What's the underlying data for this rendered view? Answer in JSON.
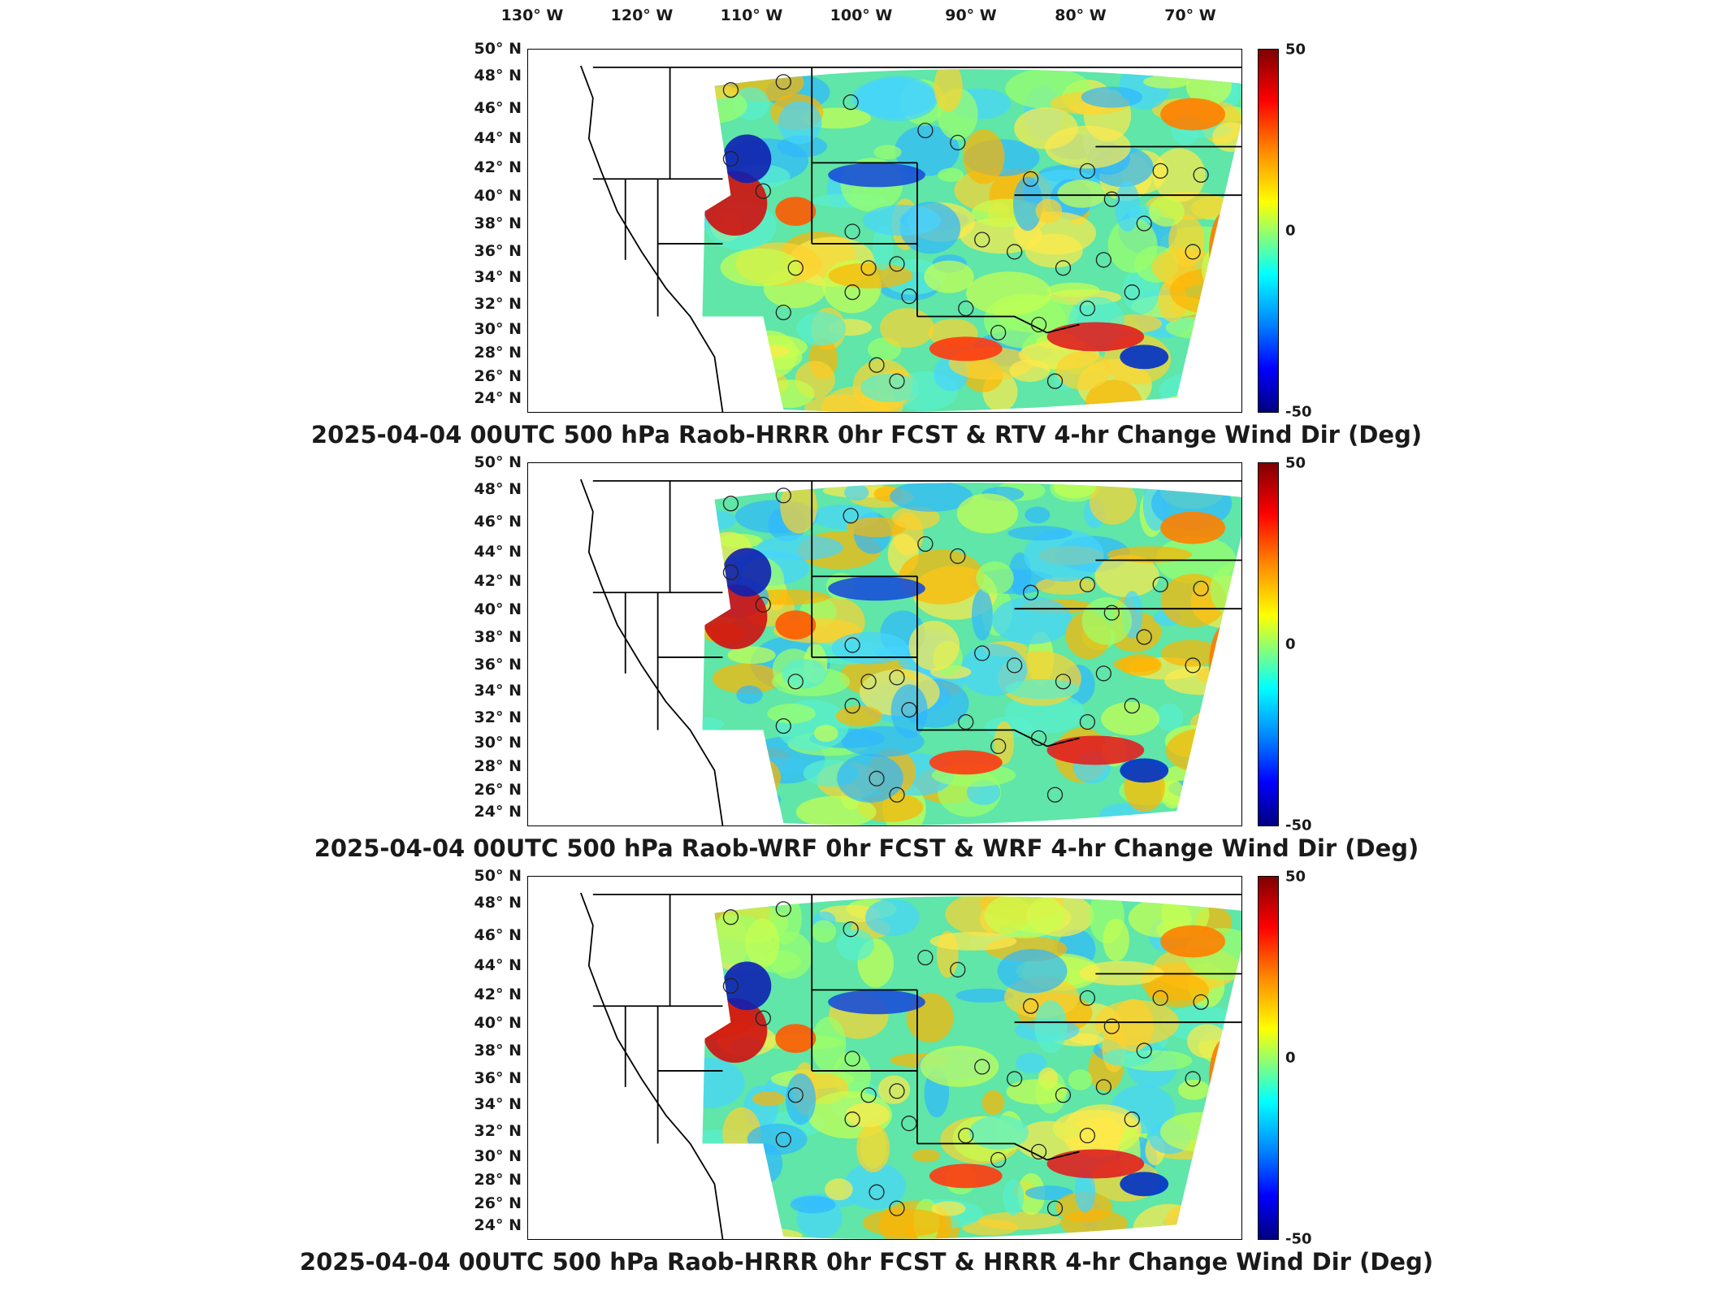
{
  "longitude_labels": [
    "130° W",
    "120° W",
    "110° W",
    "100° W",
    "90° W",
    "80° W",
    "70° W"
  ],
  "latitude_labels": [
    "50° N",
    "48° N",
    "46° N",
    "44° N",
    "42° N",
    "40° N",
    "38° N",
    "36° N",
    "34° N",
    "32° N",
    "30° N",
    "28° N",
    "26° N",
    "24° N"
  ],
  "colorbar": {
    "max": "50",
    "mid": "0",
    "min": "-50"
  },
  "panels": [
    {
      "title": "2025-04-04 00UTC 500 hPa Raob-HRRR 0hr FCST & RTV 4-hr Change Wind Dir (Deg)"
    },
    {
      "title": "2025-04-04 00UTC 500 hPa Raob-WRF 0hr FCST & WRF 4-hr Change Wind Dir (Deg)"
    },
    {
      "title": "2025-04-04 00UTC 500 hPa Raob-HRRR 0hr FCST & HRRR 4-hr Change Wind Dir (Deg)"
    }
  ],
  "colors": {
    "high": "#7f0000",
    "zero": "#80ff80",
    "low": "#00007f"
  }
}
